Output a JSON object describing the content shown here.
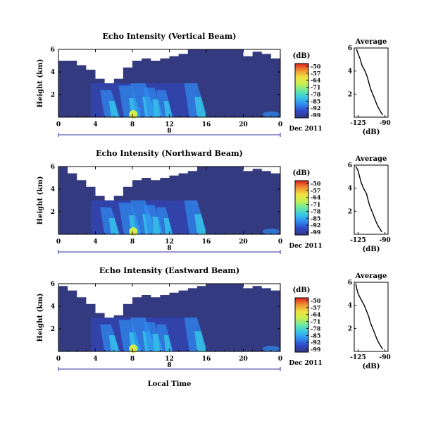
{
  "colors": {
    "background_field": "#333a80",
    "no_data": "#ffffff",
    "colormap": [
      "#333a80",
      "#3048c8",
      "#2f8cf0",
      "#36c8e8",
      "#6ae8a0",
      "#c8f050",
      "#f0e040",
      "#f09030",
      "#e02020"
    ]
  },
  "shared": {
    "x_axis_label": "Local Time",
    "date_label": "Dec 2011",
    "date_bar_label": "8",
    "colorbar_unit": "(dB)",
    "colorbar_ticks": [
      "-50",
      "-57",
      "-64",
      "-71",
      "-78",
      "-85",
      "-92",
      "-99"
    ],
    "height_axis_label": "Height (km)",
    "avg_title": "Average",
    "avg_xlabel": "(dB)"
  },
  "chart_data": [
    {
      "type": "heatmap",
      "title": "Echo Intensity (Vertical Beam)",
      "ylabel": "Height (km)",
      "x_ticks": [
        "0",
        "4",
        "8",
        "12",
        "16",
        "20",
        "0"
      ],
      "xlim": [
        0,
        24
      ],
      "y_ticks": [
        "2",
        "4",
        "6"
      ],
      "ylim": [
        0,
        6
      ],
      "colorbar": {
        "unit": "(dB)",
        "range": [
          -99,
          -50
        ]
      },
      "no_data_top_km": [
        5.0,
        5.0,
        4.6,
        4.2,
        3.4,
        3.0,
        3.4,
        4.4,
        5.0,
        5.2,
        5.0,
        5.2,
        5.4,
        5.6,
        6.0,
        6.0,
        6.0,
        6.0,
        6.0,
        6.0,
        5.4,
        5.8,
        5.6,
        5.2
      ]
    },
    {
      "type": "line",
      "title": "Average",
      "xlabel": "(dB)",
      "x_ticks": [
        "-125",
        "-90"
      ],
      "y_ticks": [
        "2",
        "4",
        "6"
      ],
      "xlim": [
        -130,
        -86
      ],
      "ylim": [
        0,
        6
      ],
      "height_km": [
        0.2,
        0.5,
        1.0,
        1.5,
        2.0,
        2.5,
        3.0,
        3.5,
        4.0,
        4.5,
        5.0,
        5.5,
        5.9
      ],
      "values_db": [
        -93,
        -96,
        -100,
        -103,
        -106,
        -109,
        -111,
        -113,
        -116,
        -120,
        -122,
        -125,
        -127
      ]
    },
    {
      "type": "heatmap",
      "title": "Echo Intensity (Northward Beam)",
      "ylabel": "Height (km)",
      "x_ticks": [
        "0",
        "4",
        "8",
        "12",
        "16",
        "20",
        "0"
      ],
      "xlim": [
        0,
        24
      ],
      "y_ticks": [
        "2",
        "4",
        "6"
      ],
      "ylim": [
        0,
        6
      ],
      "colorbar": {
        "unit": "(dB)",
        "range": [
          -99,
          -50
        ]
      },
      "no_data_top_km": [
        6.0,
        5.4,
        4.8,
        4.2,
        3.4,
        3.0,
        3.4,
        4.2,
        4.8,
        5.0,
        4.8,
        5.0,
        5.2,
        5.4,
        5.6,
        6.0,
        6.0,
        6.0,
        6.0,
        6.0,
        5.6,
        5.8,
        5.6,
        5.4
      ]
    },
    {
      "type": "line",
      "title": "Average",
      "xlabel": "(dB)",
      "x_ticks": [
        "-125",
        "-90"
      ],
      "y_ticks": [
        "2",
        "4",
        "6"
      ],
      "xlim": [
        -130,
        -86
      ],
      "ylim": [
        0,
        6
      ],
      "height_km": [
        0.2,
        0.5,
        1.0,
        1.5,
        2.0,
        2.5,
        3.0,
        3.5,
        4.0,
        4.5,
        5.0,
        5.5,
        5.9
      ],
      "values_db": [
        -94,
        -97,
        -101,
        -104,
        -107,
        -110,
        -112,
        -114,
        -118,
        -121,
        -123,
        -125,
        -128
      ]
    },
    {
      "type": "heatmap",
      "title": "Echo Intensity (Eastward Beam)",
      "ylabel": "Height (km)",
      "x_ticks": [
        "0",
        "4",
        "8",
        "12",
        "16",
        "20",
        "0"
      ],
      "xlim": [
        0,
        24
      ],
      "y_ticks": [
        "2",
        "4",
        "6"
      ],
      "ylim": [
        0,
        6
      ],
      "colorbar": {
        "unit": "(dB)",
        "range": [
          -99,
          -50
        ]
      },
      "no_data_top_km": [
        5.8,
        5.4,
        4.8,
        4.2,
        3.4,
        3.0,
        3.2,
        4.2,
        4.8,
        5.0,
        4.8,
        5.0,
        5.2,
        5.4,
        5.6,
        5.8,
        6.0,
        6.0,
        6.0,
        6.0,
        5.6,
        5.8,
        5.6,
        5.4
      ]
    },
    {
      "type": "line",
      "title": "Average",
      "xlabel": "(dB)",
      "x_ticks": [
        "-125",
        "-90"
      ],
      "y_ticks": [
        "2",
        "4",
        "6"
      ],
      "xlim": [
        -130,
        -86
      ],
      "ylim": [
        0,
        6
      ],
      "height_km": [
        0.2,
        0.5,
        1.0,
        1.5,
        2.0,
        2.5,
        3.0,
        3.5,
        4.0,
        4.5,
        5.0,
        5.5,
        5.9
      ],
      "values_db": [
        -93,
        -96,
        -100,
        -103,
        -106,
        -109,
        -111,
        -114,
        -117,
        -121,
        -125,
        -127,
        -128
      ]
    }
  ]
}
